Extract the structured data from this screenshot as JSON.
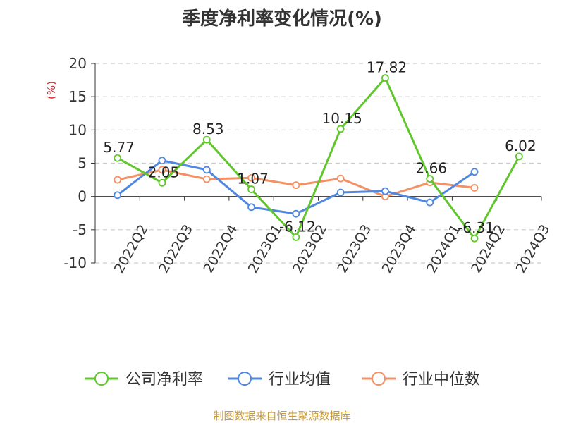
{
  "title": "季度净利率变化情况(%)",
  "source": "制图数据来自恒生聚源数据库",
  "chart_data": {
    "type": "line",
    "title": "季度净利率变化情况(%)",
    "ylabel": "(%)",
    "ylim": [
      -10,
      20
    ],
    "yticks": [
      -10,
      -5,
      0,
      5,
      10,
      15,
      20
    ],
    "grid": true,
    "legend_position": "bottom",
    "categories": [
      "2022Q2",
      "2022Q3",
      "2022Q4",
      "2023Q1",
      "2023Q2",
      "2023Q3",
      "2023Q4",
      "2024Q1",
      "2024Q2",
      "2024Q3"
    ],
    "series": [
      {
        "name": "公司净利率",
        "color": "#5fc72c",
        "values": [
          5.77,
          2.05,
          8.53,
          1.07,
          -6.12,
          10.15,
          17.82,
          2.66,
          -6.31,
          6.02
        ],
        "labels": [
          "5.77",
          "2.05",
          "8.53",
          "1.07",
          "-6.12",
          "10.15",
          "17.82",
          "2.66",
          "-6.31",
          "6.02"
        ]
      },
      {
        "name": "行业均值",
        "color": "#5087e0",
        "values": [
          0.2,
          5.4,
          4.0,
          -1.6,
          -2.6,
          0.6,
          0.8,
          -0.9,
          3.7,
          null
        ]
      },
      {
        "name": "行业中位数",
        "color": "#f49063",
        "values": [
          2.5,
          4.0,
          2.6,
          2.8,
          1.7,
          2.7,
          0.0,
          2.1,
          1.3,
          null
        ]
      }
    ]
  }
}
